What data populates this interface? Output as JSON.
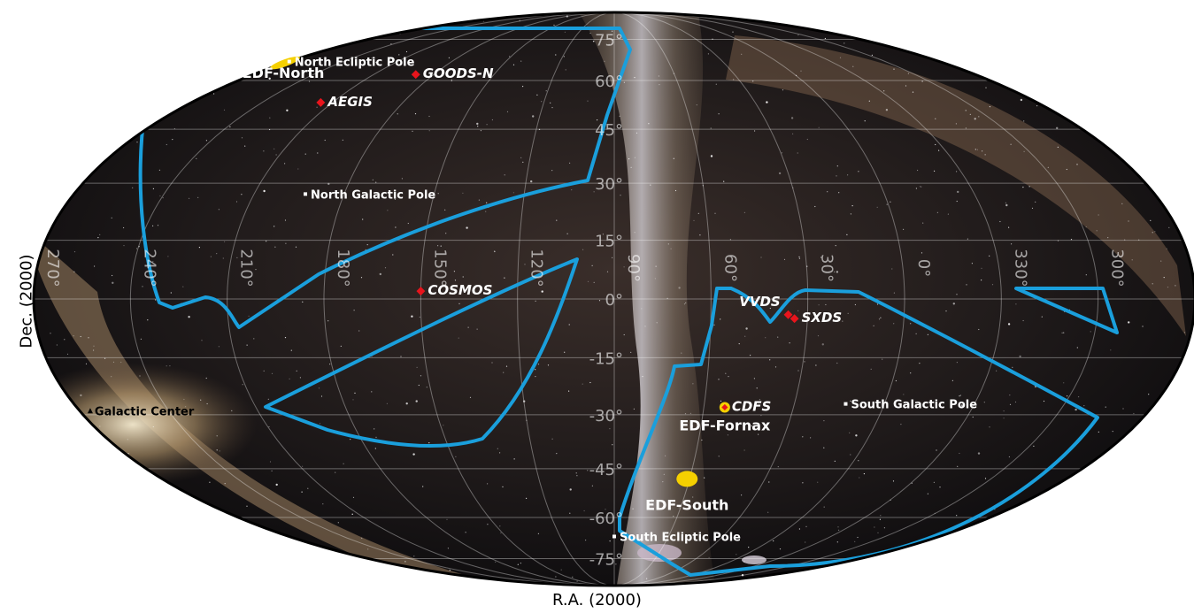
{
  "x_axis_label": "R.A. (2000)",
  "y_axis_label": "Dec. (2000)",
  "dec_ticks": [
    "75°",
    "60°",
    "45°",
    "30°",
    "15°",
    "0°",
    "-15°",
    "-30°",
    "-45°",
    "-60°",
    "-75°"
  ],
  "ra_ticks": [
    "270°",
    "240°",
    "210°",
    "180°",
    "150°",
    "120°",
    "90°",
    "60°",
    "30°",
    "0°",
    "330°",
    "300°"
  ],
  "colors": {
    "survey_outline": "#1a9fdc",
    "deep_field_marker": "#e8141c",
    "euclid_deep_field": "#f5d000",
    "label_text": "#ffffff",
    "galactic_center_label": "#000000"
  },
  "targets": [
    {
      "id": "goods-n",
      "label": "GOODS-N",
      "kind": "deep-field",
      "ra": 189,
      "dec": 62
    },
    {
      "id": "aegis",
      "label": "AEGIS",
      "kind": "deep-field",
      "ra": 215,
      "dec": 53
    },
    {
      "id": "cosmos",
      "label": "COSMOS",
      "kind": "deep-field",
      "ra": 150,
      "dec": 2
    },
    {
      "id": "vvds",
      "label": "VVDS",
      "kind": "deep-field",
      "ra": 36,
      "dec": -4
    },
    {
      "id": "sxds",
      "label": "SXDS",
      "kind": "deep-field",
      "ra": 34,
      "dec": -5
    },
    {
      "id": "cdfs",
      "label": "CDFS",
      "kind": "deep-field",
      "ra": 53,
      "dec": -28
    },
    {
      "id": "edf-north",
      "label": "EDF-North",
      "kind": "euclid-deep-field",
      "ra": 270,
      "dec": 66
    },
    {
      "id": "edf-fornax",
      "label": "EDF-Fornax",
      "kind": "euclid-deep-field",
      "ra": 53,
      "dec": -28
    },
    {
      "id": "edf-south",
      "label": "EDF-South",
      "kind": "euclid-deep-field",
      "ra": 61,
      "dec": -48
    },
    {
      "id": "nep",
      "label": "North Ecliptic Pole",
      "kind": "pole",
      "ra": 270,
      "dec": 66.5
    },
    {
      "id": "ngp",
      "label": "North Galactic Pole",
      "kind": "pole",
      "ra": 192.9,
      "dec": 27.1
    },
    {
      "id": "sgp",
      "label": "South Galactic Pole",
      "kind": "pole",
      "ra": 12.9,
      "dec": -27.1
    },
    {
      "id": "sep",
      "label": "South Ecliptic Pole",
      "kind": "pole",
      "ra": 90,
      "dec": -66.5
    },
    {
      "id": "gc",
      "label": "Galactic Center",
      "kind": "galactic-center",
      "ra": 266.4,
      "dec": -28.9
    }
  ]
}
